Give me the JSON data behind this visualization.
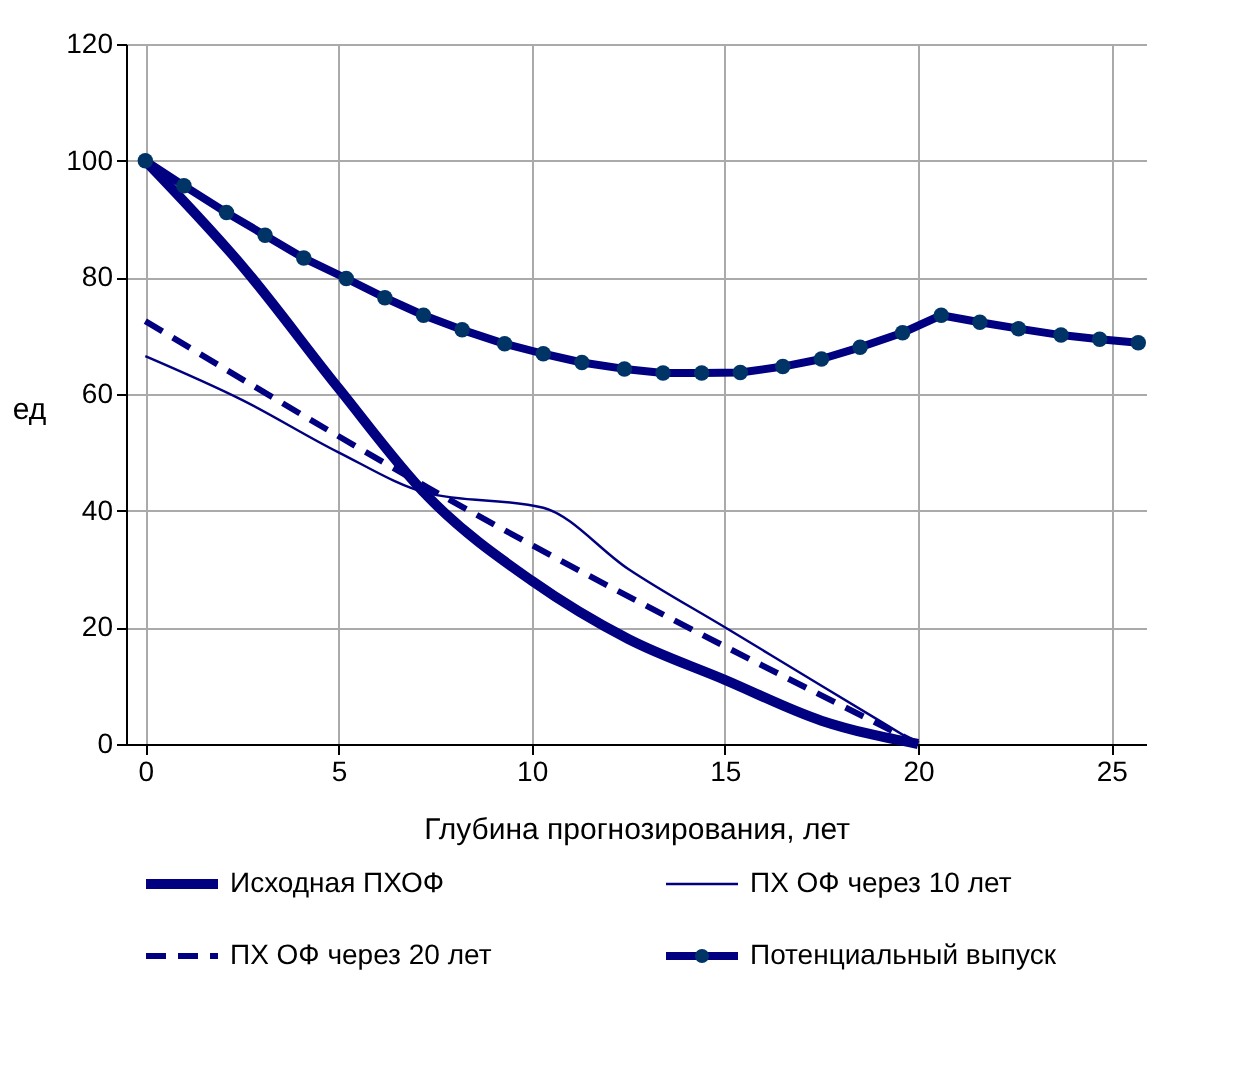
{
  "chart_data": {
    "type": "line",
    "xlabel": "Глубина прогнозирования, лет",
    "ylabel": "ед",
    "xlim": [
      -0.5,
      25.9
    ],
    "xticks": [
      0,
      5,
      10,
      15,
      20,
      25
    ],
    "ylim": [
      0,
      120
    ],
    "yticks": [
      0,
      20,
      40,
      60,
      80,
      100,
      120
    ],
    "grid": true,
    "legend": "bottom",
    "series": [
      {
        "name": "Исходная ПХОФ",
        "color": "#000080",
        "line_style": "solid",
        "marker": "none",
        "x": [
          0,
          2.5,
          5,
          7.3,
          10,
          12.5,
          15,
          17.5,
          20
        ],
        "values": [
          100,
          82,
          61,
          42.5,
          28,
          18,
          11,
          4,
          0
        ]
      },
      {
        "name": "ПХ ОФ через 10  лет",
        "color": "#000080",
        "line_style": "solid",
        "marker": "none",
        "x": [
          0,
          2.5,
          5,
          7.3,
          10.3,
          12.5,
          15,
          17.5,
          20
        ],
        "values": [
          66.5,
          59,
          50,
          43,
          40.5,
          30,
          20,
          10,
          0
        ]
      },
      {
        "name": "ПХ ОФ через 20 лет",
        "color": "#000080",
        "line_style": "dashed",
        "marker": "none",
        "x": [
          0,
          7.3,
          20
        ],
        "values": [
          72.5,
          44,
          0
        ]
      },
      {
        "name": "Потенциальный  выпуск",
        "color": "#000080",
        "line_style": "solid",
        "marker": "circle",
        "x": [
          0,
          1,
          2.1,
          3.1,
          4.1,
          5.2,
          6.2,
          7.2,
          8.2,
          9.3,
          10.3,
          11.3,
          12.4,
          13.4,
          14.4,
          15.4,
          16.5,
          17.5,
          18.5,
          19.6,
          20.6,
          21.6,
          22.6,
          23.7,
          24.7,
          25.7
        ],
        "values": [
          100,
          95.7,
          91.1,
          87.2,
          83.3,
          79.8,
          76.5,
          73.5,
          71.0,
          68.6,
          66.9,
          65.4,
          64.3,
          63.6,
          63.6,
          63.7,
          64.7,
          66.0,
          68.0,
          70.5,
          73.5,
          72.3,
          71.2,
          70.1,
          69.4,
          68.8
        ]
      }
    ]
  }
}
